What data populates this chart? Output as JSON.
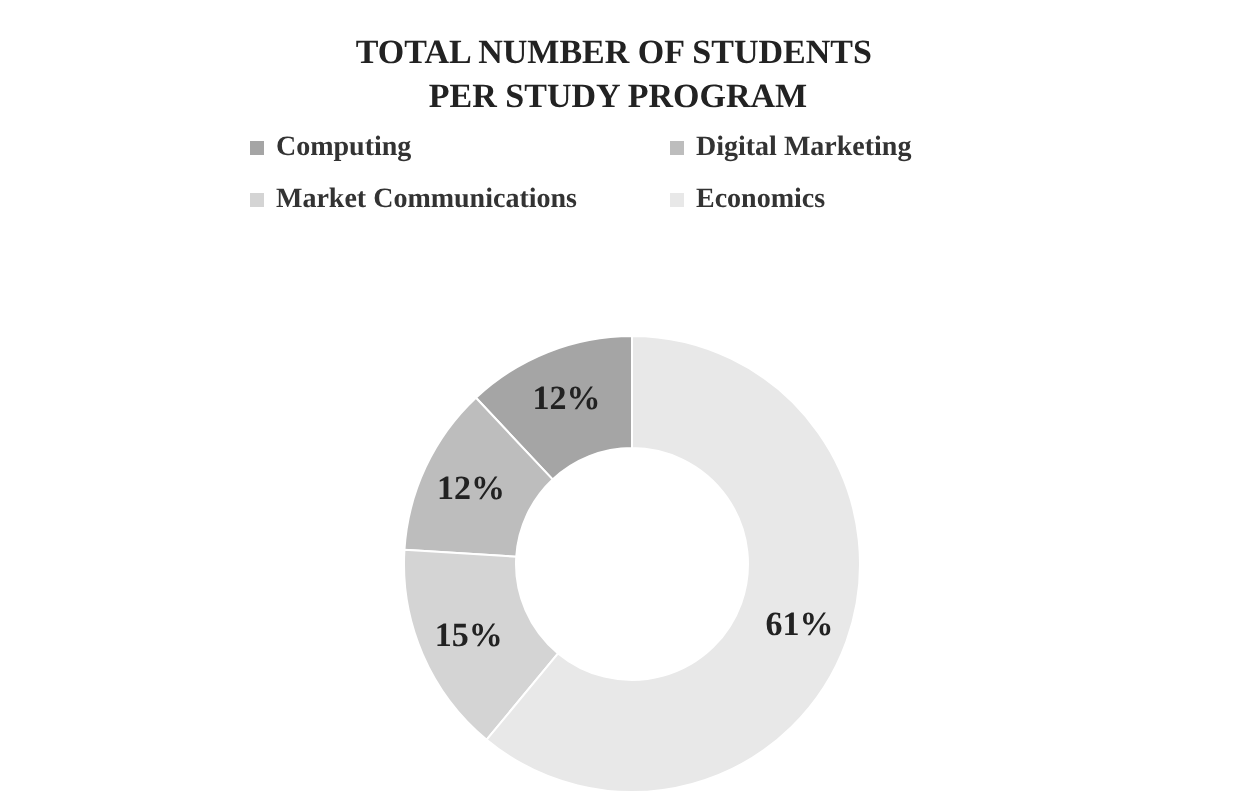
{
  "chart_data": {
    "type": "donut",
    "title": "TOTAL NUMBER OF STUDENTS PER STUDY PROGRAM",
    "categories": [
      "Computing",
      "Digital Marketing",
      "Market Communications",
      "Economics"
    ],
    "values": [
      12,
      12,
      15,
      61
    ],
    "colors": [
      "#a5a5a5",
      "#bdbdbd",
      "#d4d4d4",
      "#e8e8e8"
    ],
    "value_labels": [
      "12%",
      "12%",
      "15%",
      "61%"
    ],
    "legend": "top"
  }
}
